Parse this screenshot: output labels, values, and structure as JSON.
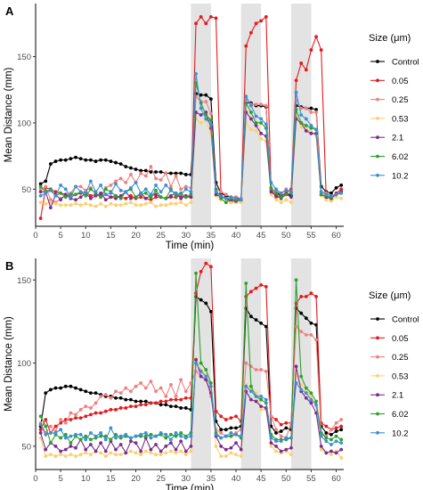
{
  "chart_data": [
    {
      "panel_label": "A",
      "type": "line",
      "xlabel": "Time (min)",
      "ylabel": "Mean Distance (mm)",
      "xlim": [
        0,
        61.5
      ],
      "ylim": [
        22,
        190
      ],
      "x_ticks": [
        0,
        5,
        10,
        15,
        20,
        25,
        30,
        35,
        40,
        45,
        50,
        55,
        60
      ],
      "y_ticks": [
        50,
        100,
        150
      ],
      "shaded_regions": [
        [
          31,
          35
        ],
        [
          41,
          45
        ],
        [
          51,
          55
        ]
      ],
      "legend": {
        "title": "Size (μm)",
        "position": "right"
      },
      "series": [
        {
          "name": "Control",
          "color": "#000000",
          "values": [
            54,
            56,
            69,
            71,
            72,
            72,
            73,
            74,
            73,
            72,
            72,
            71,
            72,
            72,
            71,
            70,
            69,
            67,
            66,
            65,
            64,
            64,
            63,
            63,
            63,
            62,
            62,
            62,
            62,
            61,
            61,
            122,
            121,
            121,
            118,
            55,
            47,
            45,
            44,
            44,
            42,
            115,
            115,
            113,
            113,
            112,
            50,
            48,
            45,
            47,
            45,
            113,
            112,
            111,
            111,
            110,
            52,
            48,
            47,
            51,
            53
          ]
        },
        {
          "name": "0.05",
          "color": "#e41a1c",
          "values": [
            28,
            51,
            50,
            48,
            47,
            46,
            44,
            46,
            47,
            48,
            45,
            46,
            45,
            46,
            44,
            45,
            44,
            43,
            45,
            43,
            44,
            43,
            42,
            44,
            44,
            43,
            44,
            44,
            45,
            44,
            44,
            175,
            180,
            175,
            180,
            179,
            45,
            43,
            40,
            42,
            41,
            158,
            168,
            175,
            177,
            180,
            50,
            44,
            45,
            47,
            50,
            132,
            145,
            140,
            155,
            165,
            155,
            43,
            44,
            47,
            50
          ]
        },
        {
          "name": "0.25",
          "color": "#f08080",
          "values": [
            50,
            52,
            42,
            40,
            43,
            45,
            47,
            52,
            52,
            49,
            51,
            46,
            44,
            51,
            53,
            56,
            58,
            55,
            61,
            55,
            62,
            60,
            67,
            58,
            57,
            62,
            52,
            60,
            50,
            52,
            51,
            120,
            116,
            116,
            107,
            50,
            48,
            46,
            44,
            44,
            43,
            118,
            114,
            114,
            114,
            113,
            50,
            48,
            47,
            50,
            48,
            117,
            111,
            111,
            108,
            108,
            48,
            47,
            45,
            46,
            48
          ]
        },
        {
          "name": "0.53",
          "color": "#fdd06f",
          "values": [
            40,
            39,
            40,
            39,
            38,
            38,
            38,
            39,
            38,
            39,
            38,
            37,
            39,
            37,
            39,
            38,
            38,
            39,
            40,
            38,
            38,
            39,
            40,
            37,
            38,
            38,
            39,
            39,
            40,
            38,
            40,
            103,
            100,
            102,
            92,
            45,
            42,
            40,
            40,
            40,
            40,
            100,
            95,
            94,
            88,
            86,
            46,
            42,
            40,
            42,
            40,
            105,
            97,
            95,
            93,
            90,
            45,
            42,
            41,
            44,
            43
          ]
        },
        {
          "name": "2.1",
          "color": "#7b2d8b",
          "values": [
            48,
            48,
            36,
            46,
            42,
            46,
            43,
            42,
            44,
            47,
            43,
            45,
            47,
            42,
            44,
            43,
            45,
            48,
            43,
            44,
            47,
            43,
            45,
            46,
            44,
            43,
            45,
            47,
            43,
            45,
            44,
            108,
            106,
            108,
            96,
            46,
            44,
            43,
            42,
            41,
            42,
            108,
            103,
            98,
            92,
            90,
            48,
            45,
            43,
            46,
            44,
            103,
            100,
            94,
            92,
            92,
            46,
            44,
            43,
            46,
            48
          ]
        },
        {
          "name": "6.02",
          "color": "#2ca02c",
          "values": [
            52,
            48,
            50,
            45,
            47,
            44,
            46,
            46,
            48,
            45,
            50,
            47,
            44,
            50,
            48,
            45,
            43,
            48,
            50,
            44,
            46,
            47,
            44,
            49,
            44,
            43,
            50,
            45,
            47,
            44,
            46,
            130,
            115,
            106,
            102,
            50,
            43,
            40,
            43,
            42,
            42,
            115,
            108,
            100,
            100,
            96,
            51,
            47,
            44,
            46,
            47,
            110,
            100,
            98,
            96,
            95,
            46,
            45,
            44,
            46,
            47
          ]
        },
        {
          "name": "10.2",
          "color": "#3b8fd6",
          "values": [
            45,
            47,
            49,
            45,
            53,
            50,
            44,
            52,
            48,
            47,
            56,
            48,
            53,
            46,
            47,
            54,
            49,
            48,
            51,
            55,
            47,
            50,
            46,
            53,
            48,
            53,
            49,
            47,
            46,
            50,
            48,
            137,
            111,
            103,
            99,
            48,
            45,
            43,
            44,
            43,
            42,
            120,
            113,
            105,
            103,
            99,
            55,
            50,
            47,
            49,
            48,
            123,
            106,
            103,
            98,
            95,
            48,
            46,
            45,
            46,
            47
          ]
        }
      ]
    },
    {
      "panel_label": "B",
      "type": "line",
      "xlabel": "Time (min)",
      "ylabel": "Mean Distance (mm)",
      "xlim": [
        0,
        61.5
      ],
      "ylim": [
        36,
        163
      ],
      "x_ticks": [
        0,
        5,
        10,
        15,
        20,
        25,
        30,
        35,
        40,
        45,
        50,
        55,
        60
      ],
      "y_ticks": [
        50,
        100,
        150
      ],
      "shaded_regions": [
        [
          31,
          35
        ],
        [
          41,
          45
        ],
        [
          51,
          55
        ]
      ],
      "legend": {
        "title": "Size (μm)",
        "position": "right"
      },
      "series": [
        {
          "name": "Control",
          "color": "#000000",
          "values": [
            62,
            82,
            84,
            85,
            85,
            86,
            86,
            85,
            84,
            83,
            82,
            82,
            81,
            80,
            80,
            79,
            79,
            78,
            78,
            77,
            77,
            77,
            76,
            76,
            75,
            75,
            74,
            74,
            73,
            73,
            72,
            140,
            138,
            136,
            131,
            65,
            60,
            60,
            61,
            61,
            62,
            133,
            128,
            126,
            124,
            122,
            62,
            58,
            59,
            61,
            60,
            133,
            130,
            127,
            124,
            123,
            62,
            58,
            57,
            59,
            60
          ]
        },
        {
          "name": "0.05",
          "color": "#e41a1c",
          "values": [
            60,
            66,
            58,
            62,
            64,
            66,
            66,
            67,
            67,
            68,
            69,
            70,
            70,
            71,
            72,
            72,
            73,
            73,
            74,
            74,
            75,
            75,
            76,
            76,
            77,
            77,
            78,
            78,
            78,
            79,
            79,
            142,
            155,
            160,
            158,
            71,
            68,
            66,
            67,
            68,
            65,
            140,
            143,
            145,
            147,
            146,
            68,
            66,
            63,
            64,
            64,
            136,
            140,
            140,
            142,
            140,
            64,
            62,
            60,
            61,
            62
          ]
        },
        {
          "name": "0.25",
          "color": "#f08080",
          "values": [
            64,
            58,
            62,
            59,
            66,
            64,
            70,
            69,
            72,
            74,
            73,
            76,
            80,
            81,
            79,
            83,
            82,
            85,
            83,
            86,
            88,
            85,
            89,
            83,
            85,
            80,
            87,
            80,
            90,
            83,
            88,
            95,
            92,
            90,
            80,
            60,
            58,
            56,
            56,
            58,
            60,
            100,
            98,
            96,
            96,
            95,
            68,
            60,
            56,
            55,
            64,
            122,
            119,
            117,
            117,
            114,
            58,
            56,
            60,
            64,
            66
          ]
        },
        {
          "name": "0.53",
          "color": "#fdd06f",
          "values": [
            55,
            44,
            45,
            44,
            45,
            44,
            45,
            44,
            45,
            46,
            45,
            47,
            46,
            44,
            46,
            45,
            45,
            46,
            47,
            46,
            45,
            47,
            46,
            45,
            45,
            46,
            47,
            46,
            47,
            45,
            47,
            103,
            96,
            93,
            86,
            50,
            44,
            44,
            46,
            45,
            44,
            87,
            84,
            82,
            72,
            72,
            50,
            47,
            46,
            47,
            45,
            93,
            87,
            84,
            80,
            74,
            48,
            46,
            45,
            47,
            43
          ]
        },
        {
          "name": "2.1",
          "color": "#7b2d8b",
          "values": [
            58,
            48,
            52,
            50,
            47,
            48,
            50,
            49,
            54,
            48,
            51,
            47,
            52,
            47,
            53,
            48,
            51,
            46,
            53,
            52,
            47,
            55,
            48,
            51,
            47,
            50,
            52,
            48,
            53,
            47,
            50,
            102,
            92,
            90,
            82,
            56,
            50,
            48,
            49,
            52,
            48,
            83,
            78,
            77,
            74,
            73,
            52,
            50,
            47,
            48,
            49,
            98,
            83,
            79,
            76,
            70,
            50,
            46,
            47,
            46,
            48
          ]
        },
        {
          "name": "6.02",
          "color": "#2ca02c",
          "values": [
            68,
            62,
            52,
            57,
            55,
            57,
            52,
            56,
            54,
            56,
            54,
            55,
            56,
            56,
            54,
            57,
            55,
            56,
            55,
            56,
            56,
            56,
            57,
            56,
            57,
            55,
            57,
            56,
            58,
            56,
            58,
            154,
            100,
            96,
            88,
            58,
            55,
            56,
            56,
            57,
            55,
            148,
            86,
            80,
            78,
            76,
            57,
            54,
            54,
            54,
            55,
            150,
            92,
            85,
            82,
            77,
            58,
            55,
            54,
            56,
            54
          ]
        },
        {
          "name": "10.2",
          "color": "#3b8fd6",
          "values": [
            63,
            57,
            58,
            58,
            60,
            55,
            56,
            57,
            57,
            54,
            58,
            56,
            58,
            54,
            61,
            55,
            56,
            57,
            55,
            56,
            57,
            58,
            55,
            56,
            58,
            57,
            54,
            58,
            56,
            55,
            56,
            100,
            95,
            92,
            86,
            57,
            55,
            56,
            58,
            57,
            56,
            86,
            83,
            80,
            80,
            78,
            55,
            53,
            53,
            55,
            55,
            88,
            84,
            82,
            78,
            75,
            56,
            53,
            51,
            53,
            52
          ]
        }
      ]
    }
  ]
}
